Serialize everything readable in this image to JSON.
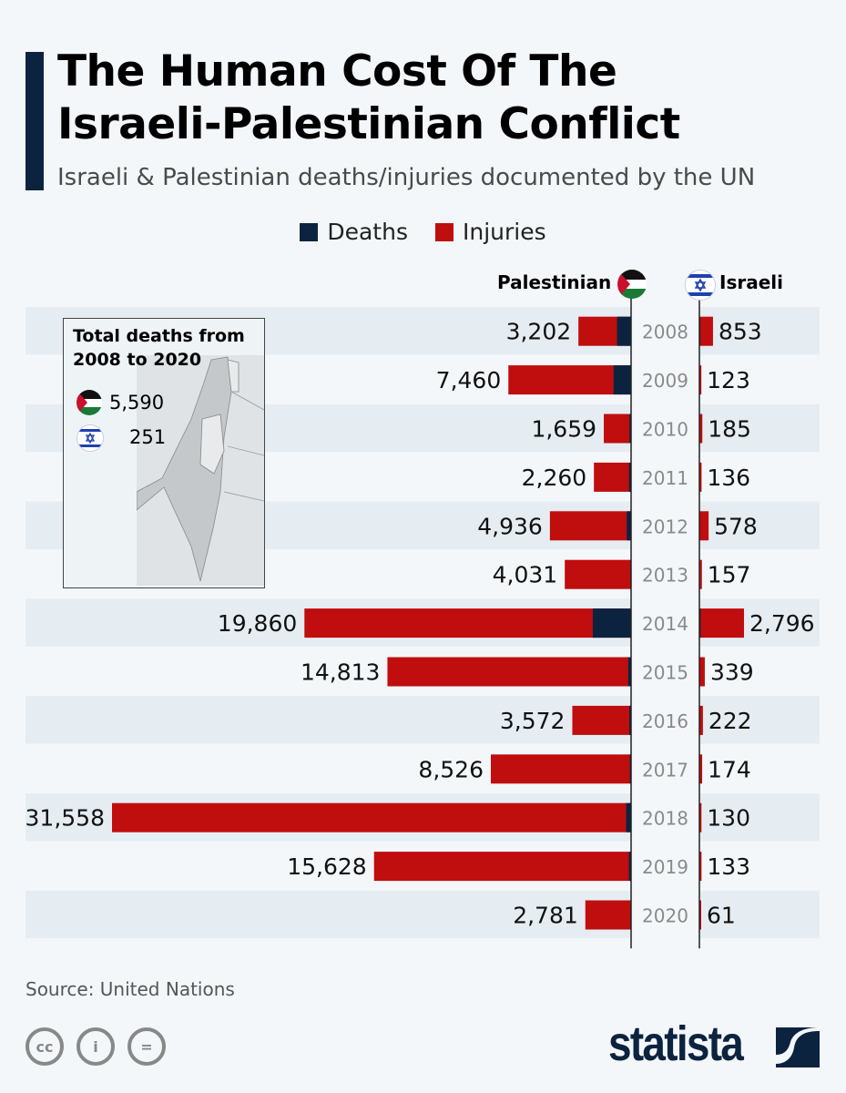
{
  "title_line1": "The Human Cost Of The",
  "title_line2": "Israeli-Palestinian Conflict",
  "subtitle": "Israeli & Palestinian deaths/injuries documented by the UN",
  "source": "Source: United Nations",
  "brand": "statista",
  "colors": {
    "deaths": "#0c2340",
    "injuries": "#c00d0e",
    "accent": "#0c2340"
  },
  "inset": {
    "title_line1": "Total deaths from",
    "title_line2": "2008 to 2020",
    "palestinian_total": "5,590",
    "israeli_total": "251",
    "map": "israel-palestine-map"
  },
  "chart_data": {
    "type": "bar",
    "orientation": "horizontal-diverging",
    "legend": [
      {
        "name": "Deaths"
      },
      {
        "name": "Injuries"
      }
    ],
    "legend_position": "top",
    "left_header": "Palestinian",
    "right_header": "Israeli",
    "categories": [
      "2008",
      "2009",
      "2010",
      "2011",
      "2012",
      "2013",
      "2014",
      "2015",
      "2016",
      "2017",
      "2018",
      "2019",
      "2020"
    ],
    "series": [
      {
        "name": "Palestinian",
        "totals": [
          3202,
          7460,
          1659,
          2260,
          4936,
          4031,
          19860,
          14813,
          3572,
          8526,
          31558,
          15628,
          2781
        ],
        "labels": [
          "3,202",
          "7,460",
          "1,659",
          "2,260",
          "4,936",
          "4,031",
          "19,860",
          "14,813",
          "3,572",
          "8,526",
          "31,558",
          "15,628",
          "2,781"
        ],
        "deaths": [
          855,
          1066,
          95,
          124,
          260,
          39,
          2329,
          174,
          109,
          77,
          299,
          133,
          30
        ]
      },
      {
        "name": "Israeli",
        "totals": [
          853,
          123,
          185,
          136,
          578,
          157,
          2796,
          339,
          222,
          174,
          130,
          133,
          61
        ],
        "labels": [
          "853",
          "123",
          "185",
          "136",
          "578",
          "157",
          "2,796",
          "339",
          "222",
          "174",
          "130",
          "133",
          "61"
        ],
        "deaths": [
          56,
          9,
          9,
          11,
          7,
          6,
          73,
          25,
          13,
          15,
          14,
          10,
          3
        ]
      }
    ]
  }
}
